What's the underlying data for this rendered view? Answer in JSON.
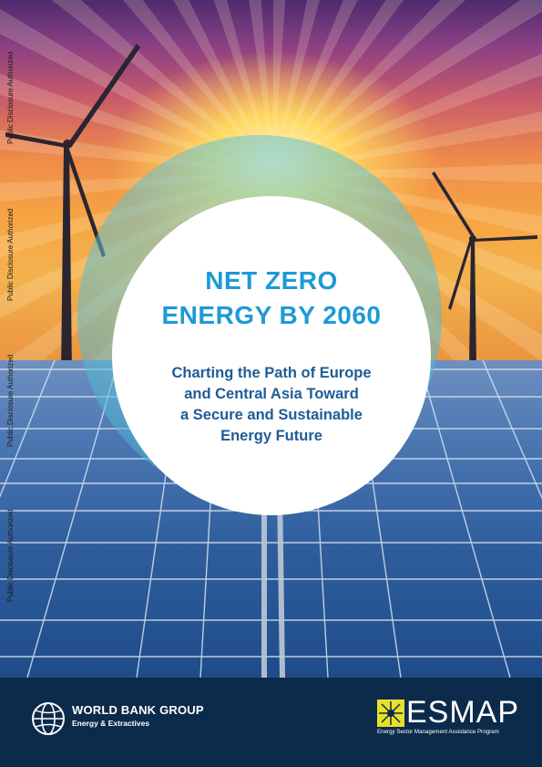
{
  "cover": {
    "title_line1": "NET ZERO",
    "title_line2": "ENERGY BY 2060",
    "subtitle_lines": [
      "Charting the Path of Europe",
      "and Central Asia Toward",
      "a Secure and Sustainable",
      "Energy Future"
    ]
  },
  "side_notes": [
    "Public Disclosure Authorized",
    "Public Disclosure Authorized",
    "Public Disclosure Authorized",
    "Public Disclosure Authorized"
  ],
  "footer": {
    "world_bank_name": "WORLD BANK GROUP",
    "world_bank_sub": "Energy & Extractives",
    "esmap_name": "ESMAP",
    "esmap_sub": "Energy Sector Management Assistance Program"
  },
  "icons": [
    "world-bank-globe-icon",
    "esmap-star-icon",
    "wind-turbine-icon"
  ],
  "colors": {
    "title": "#1d9ad6",
    "subtitle": "#1e5c97",
    "footer_bg": "#0c2b4a",
    "esmap_accent": "#e8e02a"
  }
}
